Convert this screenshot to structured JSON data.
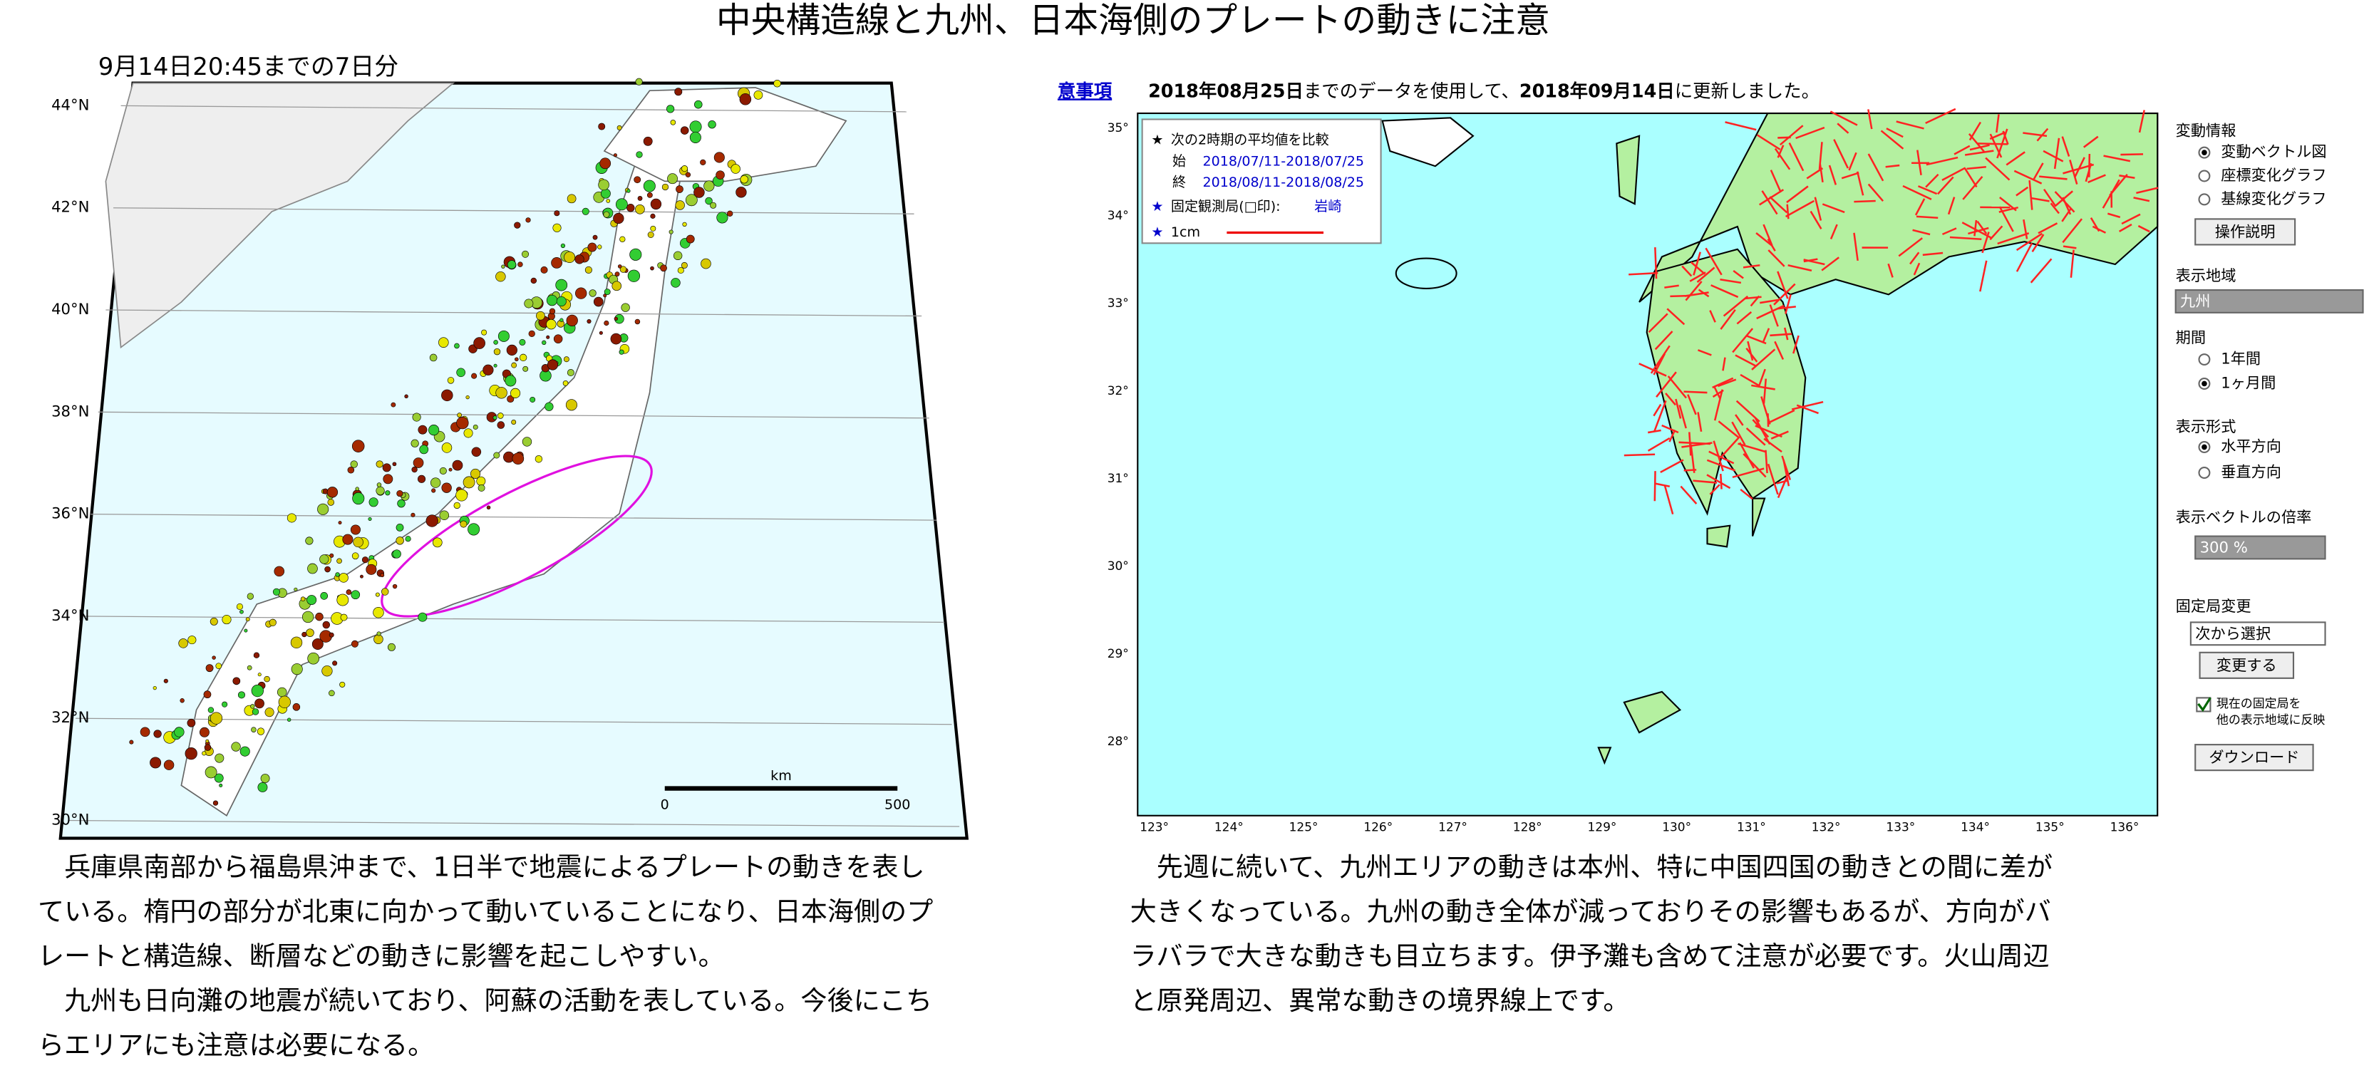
{
  "title": "中央構造線と九州、日本海側のプレートの動きに注意",
  "left_map": {
    "period": "9月14日20:45までの7日分",
    "lat_labels": [
      "44°N",
      "42°N",
      "40°N",
      "38°N",
      "36°N",
      "34°N",
      "32°N",
      "30°N"
    ],
    "scale": {
      "unit": "km",
      "start": "0",
      "end": "500"
    }
  },
  "left_caption": [
    "　兵庫県南部から福島県沖まで、1日半で地震によるプレートの動きを表し",
    "ている。楕円の部分が北東に向かって動いていることになり、日本海側のプ",
    "レートと構造線、断層などの動きに影響を起こしやすい。",
    "　九州も日向灘の地震が続いており、阿蘇の活動を表している。今後にこち",
    "らエリアにも注意は必要になる。"
  ],
  "right_map": {
    "notice_link": "意事項",
    "header": [
      "2018年08月25日",
      "までのデータを使用して、",
      "2018年09月14日",
      "に更新しました。"
    ],
    "legend": {
      "compare": "次の2時期の平均値を比較",
      "start_label": "始",
      "start_range": "2018/07/11-2018/07/25",
      "end_label": "終",
      "end_range": "2018/08/11-2018/08/25",
      "fixed_station": "固定観測局(□印):",
      "station_name": "岩崎",
      "scale": "1cm"
    },
    "lat_labels": [
      "35°",
      "34°",
      "33°",
      "32°",
      "31°",
      "30°",
      "29°",
      "28°"
    ],
    "lon_labels": [
      "123°",
      "124°",
      "125°",
      "126°",
      "127°",
      "128°",
      "129°",
      "130°",
      "131°",
      "132°",
      "133°",
      "134°",
      "135°",
      "136°"
    ]
  },
  "side_panel": {
    "info_heading": "変動情報",
    "info_options": [
      "変動ベクトル図",
      "座標変化グラフ",
      "基線変化グラフ"
    ],
    "help_button": "操作説明",
    "area_heading": "表示地域",
    "area_value": "九州",
    "period_heading": "期間",
    "period_options": [
      "1年間",
      "1ヶ月間"
    ],
    "format_heading": "表示形式",
    "format_options": [
      "水平方向",
      "垂直方向"
    ],
    "ratio_heading": "表示ベクトルの倍率",
    "ratio_value": "300 %",
    "fixed_heading": "固定局変更",
    "fixed_value": "次から選択",
    "change_button": "変更する",
    "reflect_label": [
      "現在の固定局を",
      "他の表示地域に反映"
    ],
    "download_button": "ダウンロード"
  },
  "right_caption": [
    "　先週に続いて、九州エリアの動きは本州、特に中国四国の動きとの間に差が",
    "大きくなっている。九州の動き全体が減っておりその影響もあるが、方向がバ",
    "ラバラで大きな動きも目立ちます。伊予灘も含めて注意が必要です。火山周辺",
    "と原発周辺、異常な動きの境界線上です。"
  ]
}
